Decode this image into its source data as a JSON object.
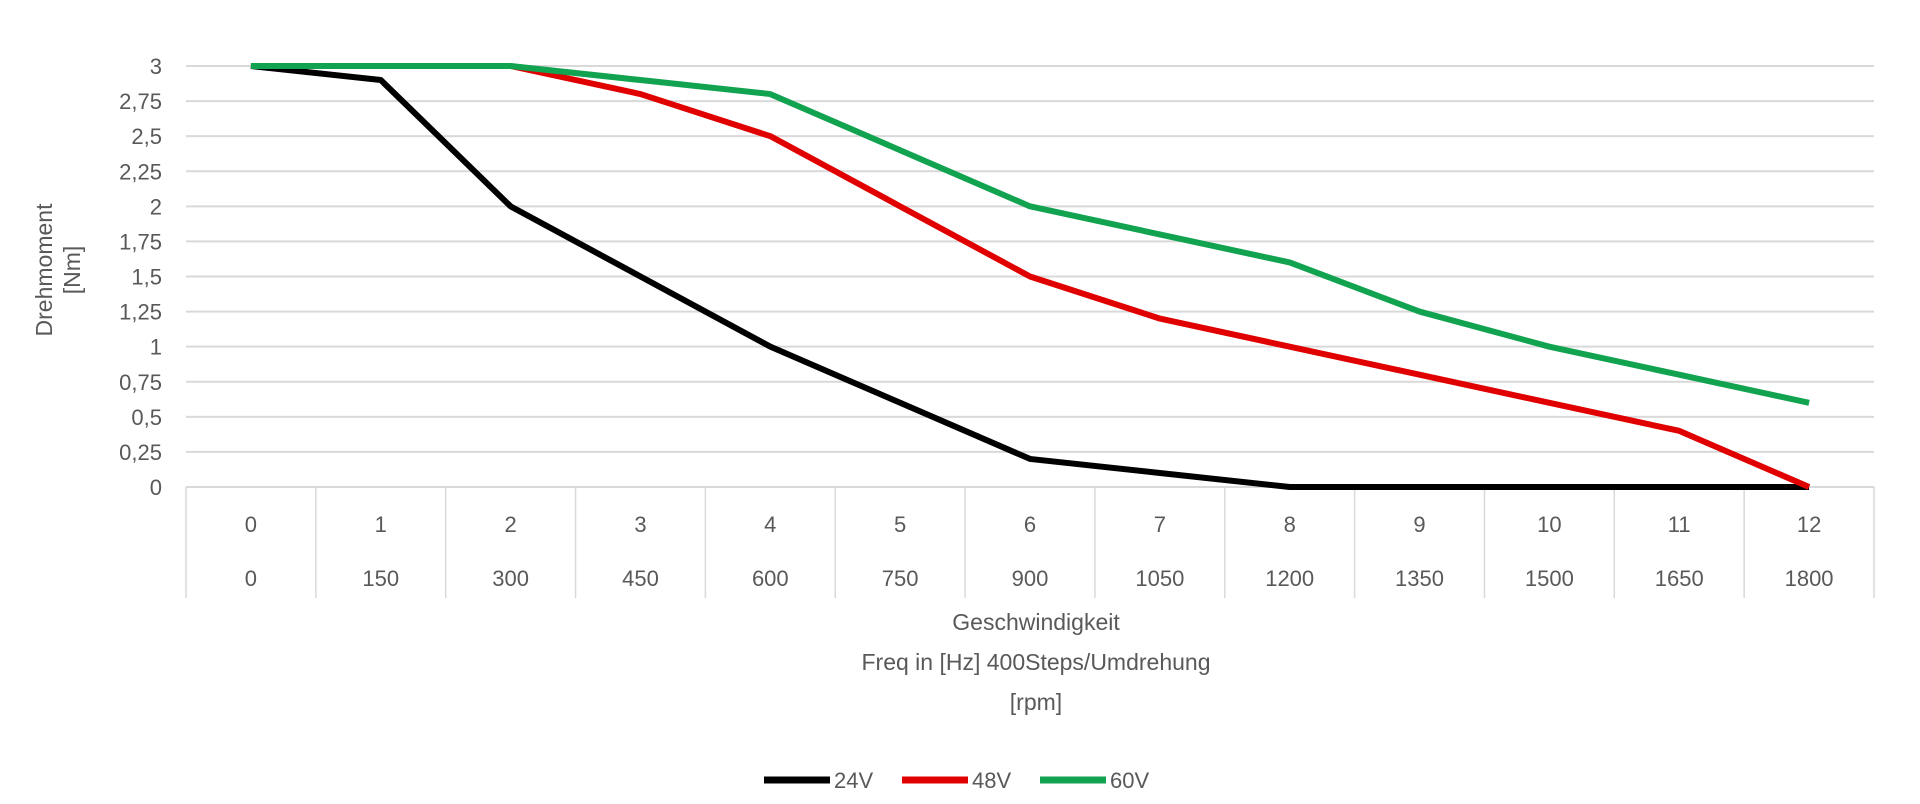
{
  "chart_data": {
    "type": "line",
    "title": "",
    "ylabel": [
      "Drehmoment",
      "[Nm]"
    ],
    "xlabel": [
      "Geschwindigkeit",
      "Freq in [Hz] 400Steps/Umdrehung",
      "[rpm]"
    ],
    "categories_row1": [
      "0",
      "1",
      "2",
      "3",
      "4",
      "5",
      "6",
      "7",
      "8",
      "9",
      "10",
      "11",
      "12"
    ],
    "categories_row2": [
      "0",
      "150",
      "300",
      "450",
      "600",
      "750",
      "900",
      "1050",
      "1200",
      "1350",
      "1500",
      "1650",
      "1800"
    ],
    "ylim": [
      0,
      3
    ],
    "yticks": [
      0,
      0.25,
      0.5,
      0.75,
      1,
      1.25,
      1.5,
      1.75,
      2,
      2.25,
      2.5,
      2.75,
      3
    ],
    "ytick_labels": [
      "0",
      "0,25",
      "0,5",
      "0,75",
      "1",
      "1,25",
      "1,5",
      "1,75",
      "2",
      "2,25",
      "2,5",
      "2,75",
      "3"
    ],
    "grid": true,
    "legend_position": "bottom",
    "series": [
      {
        "name": "24V",
        "color": "#000000",
        "values": [
          3,
          2.9,
          2,
          1.5,
          1,
          0.6,
          0.2,
          0.1,
          0,
          0,
          0,
          0,
          0
        ]
      },
      {
        "name": "48V",
        "color": "#e00000",
        "values": [
          3,
          3,
          3,
          2.8,
          2.5,
          2,
          1.5,
          1.2,
          1,
          0.8,
          0.6,
          0.4,
          0
        ]
      },
      {
        "name": "60V",
        "color": "#12a350",
        "values": [
          3,
          3,
          3,
          2.9,
          2.8,
          2.4,
          2,
          1.8,
          1.6,
          1.25,
          1,
          0.8,
          0.6
        ]
      }
    ]
  }
}
